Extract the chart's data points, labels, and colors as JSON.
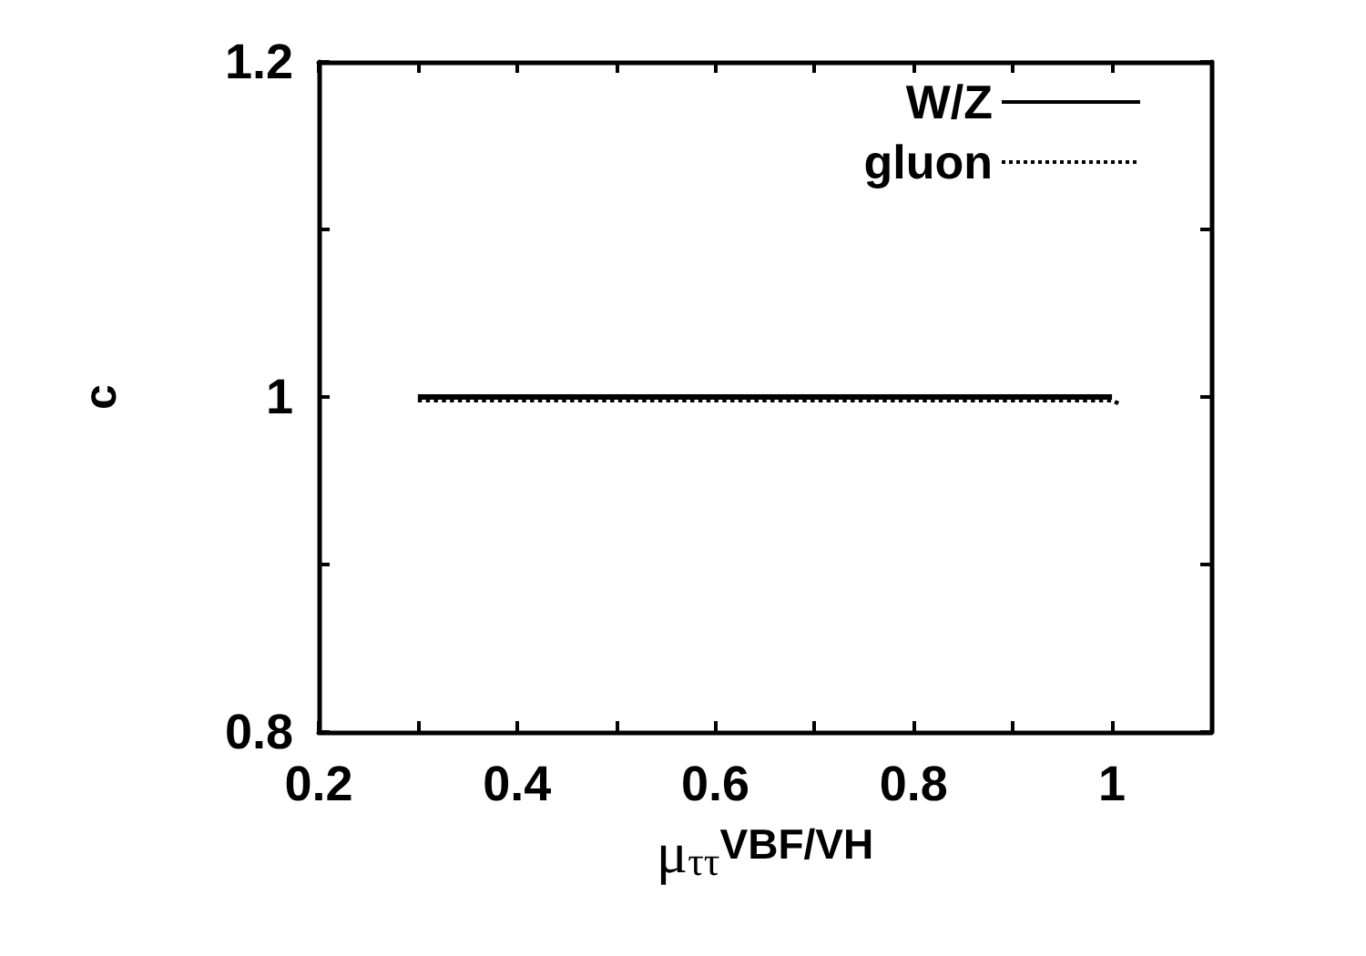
{
  "chart_data": {
    "type": "line",
    "xlabel": "μ$_{ττ}$$^{VBF/VH}$",
    "ylabel": "c",
    "xlim": [
      0.2,
      1.1
    ],
    "xticks": [
      0.2,
      {
        "value": 0.3,
        "label": null
      },
      0.4,
      {
        "value": 0.5,
        "label": null
      },
      0.6,
      {
        "value": 0.7,
        "label": null
      },
      0.8,
      {
        "value": 0.9,
        "label": null
      },
      1
    ],
    "ylim": [
      0.8,
      1.2
    ],
    "yticks": [
      0.8,
      {
        "value": 0.9,
        "label": null
      },
      1,
      {
        "value": 1.1,
        "label": null
      },
      1.2
    ],
    "legend": "top right",
    "grid": false,
    "marker": "none",
    "series": [
      {
        "name": "W/Z",
        "color": "#000000",
        "x": [
          0.3,
          1.0
        ],
        "values": [
          1,
          1
        ],
        "line_style": "solid"
      },
      {
        "name": "gluon",
        "color": "#000000",
        "x": [
          0.3,
          1.0,
          1.007
        ],
        "values": [
          0.998,
          0.998,
          0.996
        ],
        "line_style": "dotted"
      }
    ]
  }
}
